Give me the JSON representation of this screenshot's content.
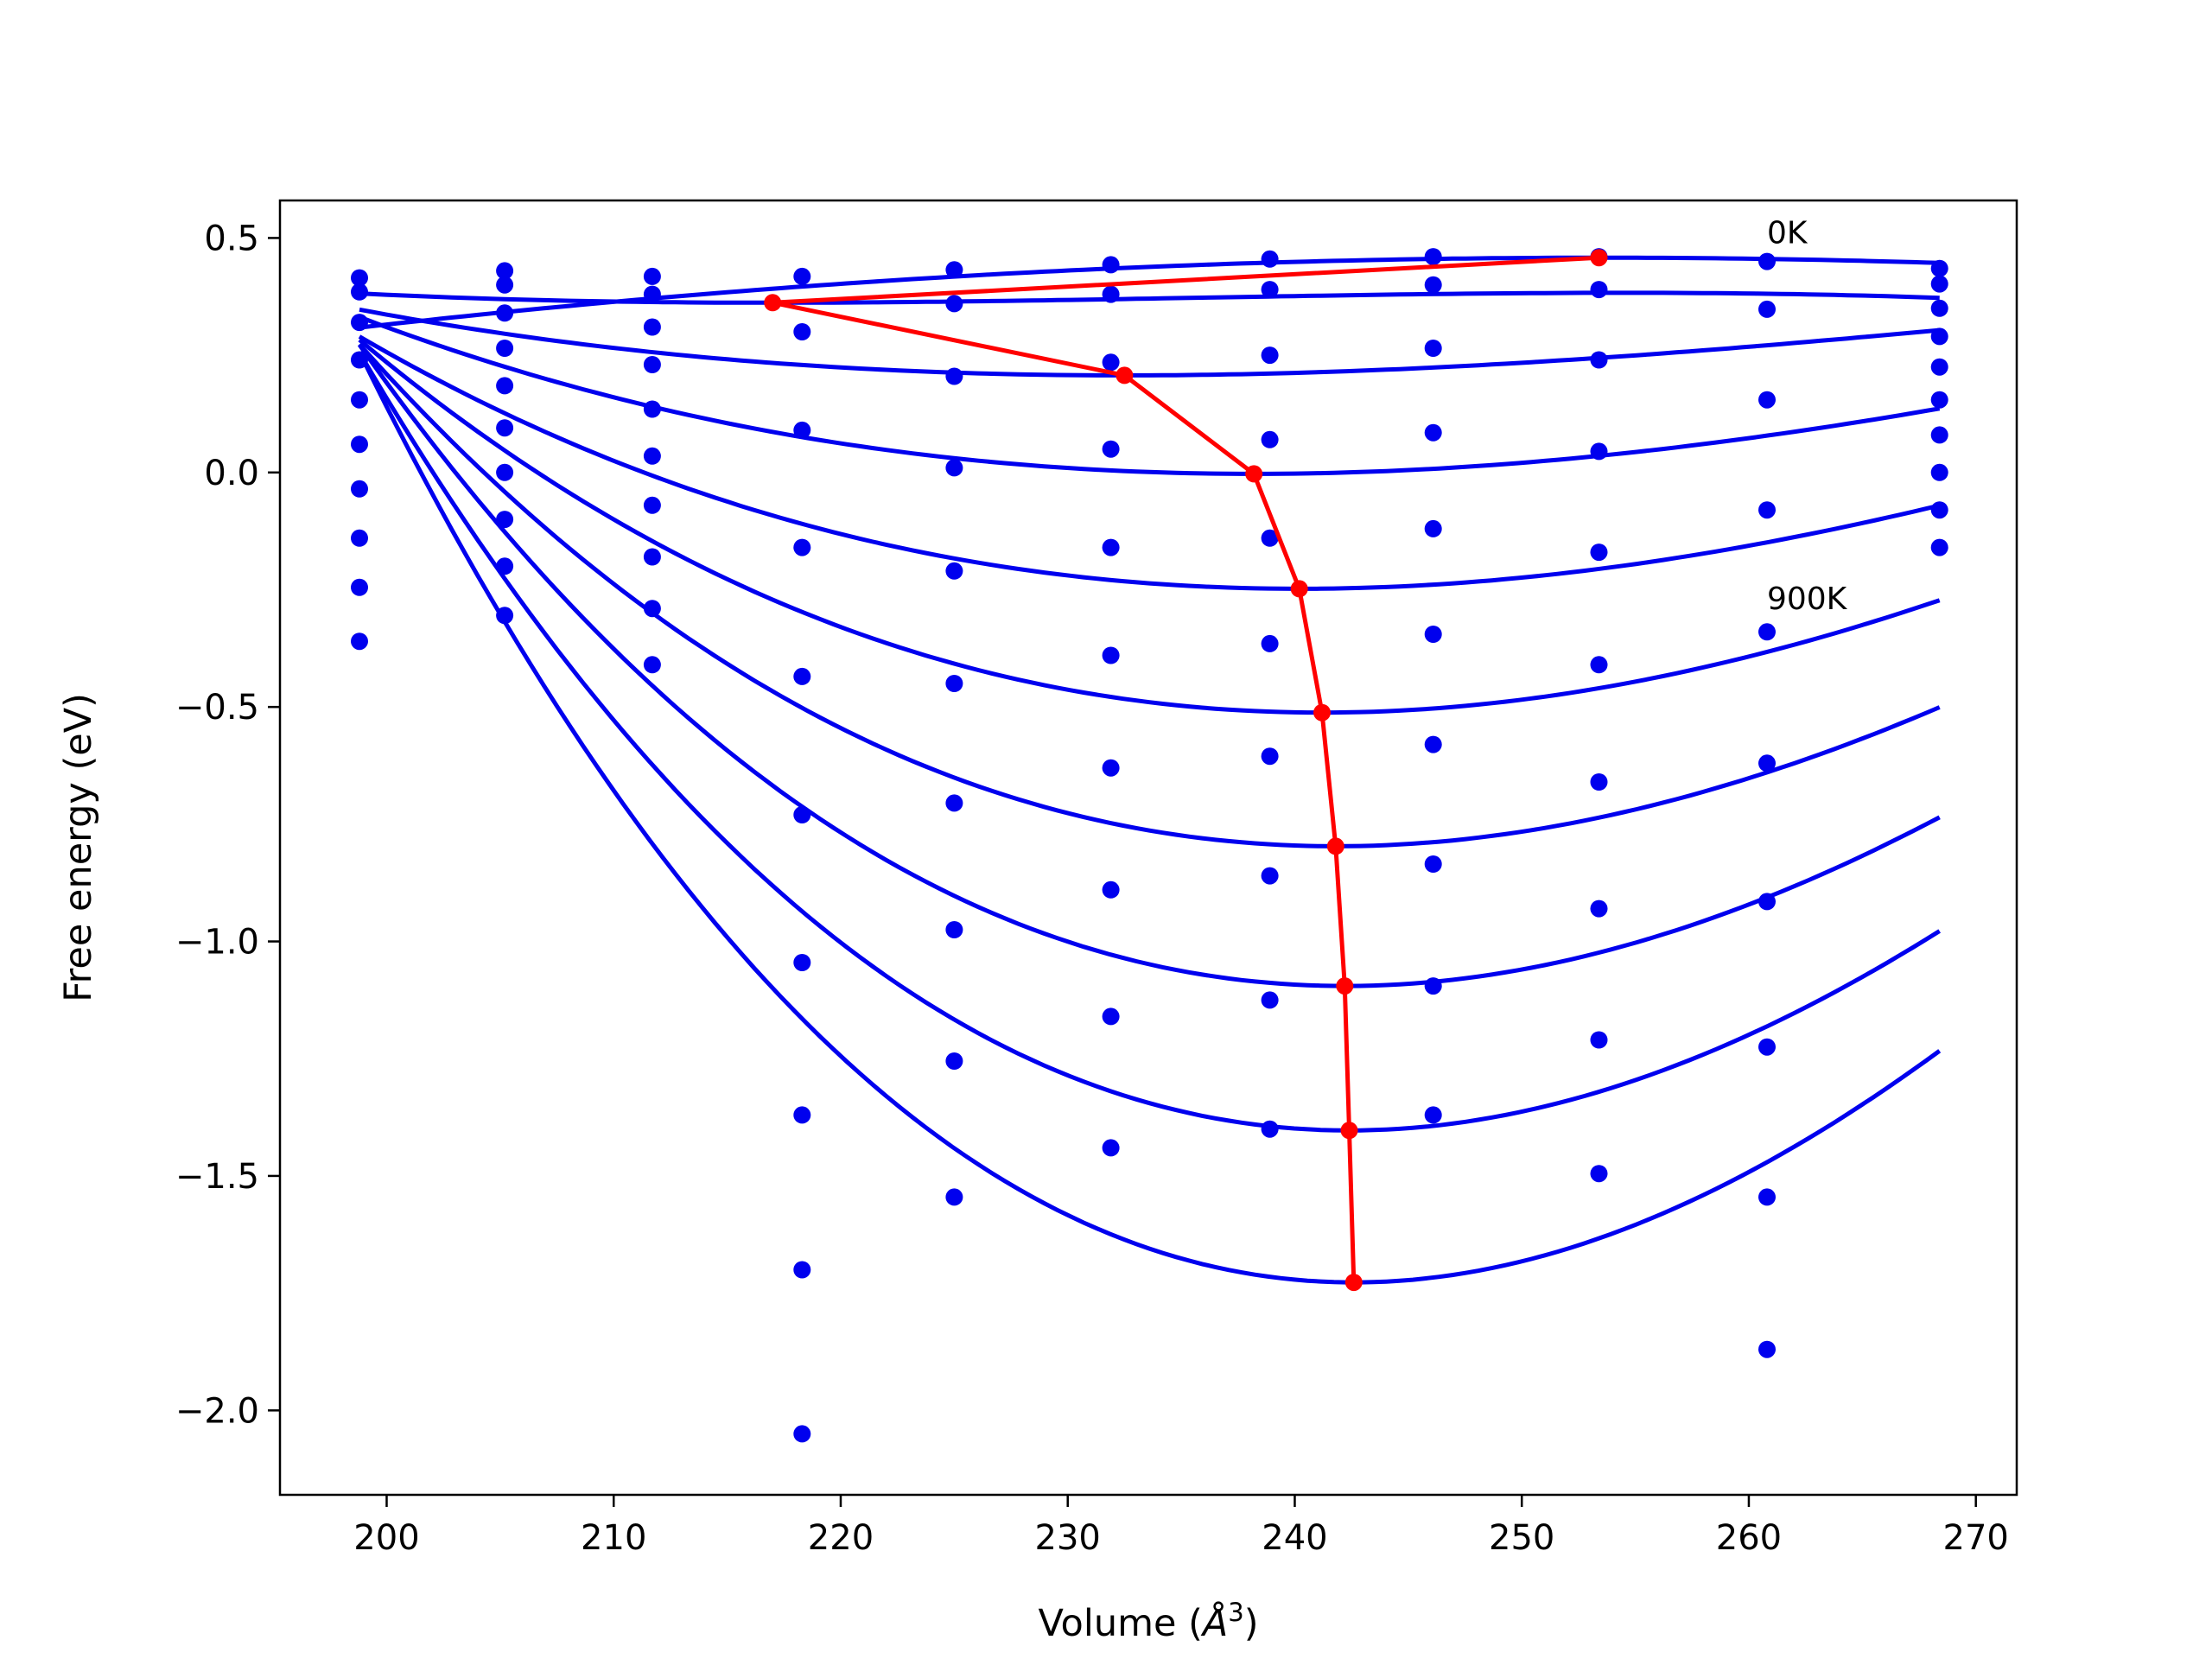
{
  "chart_data": {
    "type": "scatter",
    "title": "",
    "xlabel": "Volume (",
    "xlabel_unit_base": "Å",
    "xlabel_unit_exp": "3",
    "xlabel_close": ")",
    "ylabel": "Free energy (eV)",
    "xlim": [
      195.3,
      271.8
    ],
    "ylim": [
      -2.18,
      0.58
    ],
    "xticks": [
      200,
      210,
      220,
      230,
      240,
      250,
      260,
      270
    ],
    "xtick_labels": [
      "200",
      "210",
      "220",
      "230",
      "240",
      "250",
      "260",
      "270"
    ],
    "yticks": [
      0.5,
      0.0,
      -0.5,
      -1.0,
      -1.5,
      -2.0
    ],
    "ytick_labels": [
      "0.5",
      "0.0",
      "−0.5",
      "−1.0",
      "−1.5",
      "−2.0"
    ],
    "grid": false,
    "colors": {
      "points": "#0000ee",
      "fits": "#0000ee",
      "minima": "#ff0000"
    },
    "volumes": [
      198.8,
      205.2,
      211.7,
      218.3,
      225.0,
      231.9,
      238.9,
      246.1,
      253.4,
      260.8,
      268.4
    ],
    "series": [
      {
        "y": [
          0.415,
          0.43,
          0.418,
          0.418,
          0.432,
          0.443,
          0.455,
          0.46,
          0.46,
          0.45,
          0.435
        ],
        "fit": {
          "v0": 253.4,
          "f0": 0.458,
          "a": -5e-05,
          "b": 0.0
        }
      },
      {
        "y": [
          0.385,
          0.4,
          0.38,
          0.3,
          0.36,
          0.38,
          0.39,
          0.4,
          0.39,
          0.348,
          0.402
        ],
        "fit": {
          "v0": 217.0,
          "f0": 0.362,
          "a": 4.5e-05,
          "b": -8e-07
        }
      },
      {
        "y": [
          0.32,
          0.34,
          0.31,
          null,
          0.205,
          0.235,
          0.25,
          0.265,
          0.24,
          0.155,
          0.35
        ],
        "fit": {
          "v0": 232.5,
          "f0": 0.207,
          "a": 0.0001,
          "b": -7e-07
        }
      },
      {
        "y": [
          0.24,
          0.265,
          0.23,
          0.09,
          0.01,
          0.05,
          0.07,
          0.085,
          0.045,
          -0.08,
          0.29
        ],
        "fit": {
          "v0": 238.2,
          "f0": -0.003,
          "a": 0.00018,
          "b": -9e-07
        }
      },
      {
        "y": [
          0.155,
          0.185,
          0.135,
          -0.16,
          -0.21,
          -0.16,
          -0.14,
          -0.12,
          -0.17,
          -0.34,
          0.225
        ],
        "fit": {
          "v0": 240.2,
          "f0": -0.248,
          "a": 0.00026,
          "b": -1.3e-06
        }
      },
      {
        "y": [
          0.06,
          0.095,
          0.035,
          -0.435,
          -0.45,
          -0.39,
          -0.365,
          -0.345,
          -0.41,
          -0.62,
          0.155
        ],
        "fit": {
          "v0": 241.2,
          "f0": -0.512,
          "a": 0.00037,
          "b": -1.7e-06
        }
      },
      {
        "y": [
          -0.035,
          0.0,
          -0.07,
          -0.73,
          -0.705,
          -0.63,
          -0.605,
          -0.58,
          -0.66,
          -0.915,
          0.08
        ],
        "fit": {
          "v0": 241.8,
          "f0": -0.797,
          "a": 0.00048,
          "b": -2.3e-06
        }
      },
      {
        "y": [
          -0.14,
          -0.1,
          -0.18,
          -1.045,
          -0.975,
          -0.89,
          -0.86,
          -0.835,
          -0.93,
          -1.225,
          0.0
        ],
        "fit": {
          "v0": 242.2,
          "f0": -1.095,
          "a": 0.0006,
          "b": -2.9e-06
        }
      },
      {
        "y": [
          -0.245,
          -0.2,
          -0.29,
          -1.37,
          -1.255,
          -1.16,
          -1.125,
          -1.095,
          -1.21,
          -1.545,
          -0.08
        ],
        "fit": {
          "v0": 242.4,
          "f0": -1.403,
          "a": 0.00072,
          "b": -3.5e-06
        }
      },
      {
        "y": [
          -0.36,
          -0.305,
          -0.41,
          -1.7,
          -1.545,
          -1.44,
          -1.4,
          -1.37,
          -1.495,
          -1.87,
          -0.16
        ],
        "fit": {
          "v0": 242.6,
          "f0": -1.727,
          "a": 0.00085,
          "b": -4.2e-06
        }
      },
      {
        "y": [
          null,
          null,
          null,
          -2.05,
          null,
          null,
          null,
          null,
          null,
          null,
          null
        ]
      }
    ],
    "fit_range": [
      198.8,
      268.4
    ],
    "minima_path": {
      "x": [
        253.4,
        217.0,
        232.5,
        238.2,
        240.2,
        241.2,
        241.8,
        242.2,
        242.4,
        242.6
      ],
      "y": [
        0.458,
        0.362,
        0.207,
        -0.003,
        -0.248,
        -0.512,
        -0.797,
        -1.095,
        -1.403,
        -1.727
      ]
    },
    "annotations": [
      {
        "text": "0K",
        "x": 260.8,
        "y": 0.5
      },
      {
        "text": "900K",
        "x": 260.8,
        "y": -0.28
      }
    ]
  }
}
